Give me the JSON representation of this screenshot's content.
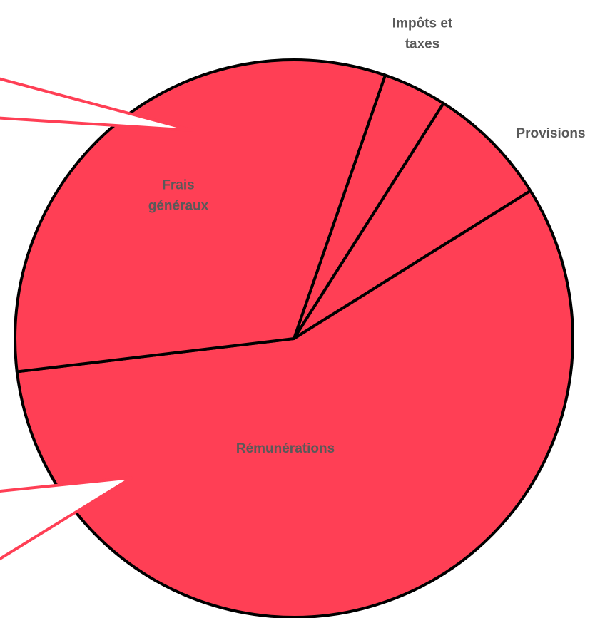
{
  "chart_data": {
    "type": "pie",
    "categories": [
      "Impôts et taxes",
      "Provisions",
      "Rémunérations",
      "Frais généraux"
    ],
    "values": [
      3.7,
      7.1,
      57,
      32.2
    ],
    "color": "#ff3f55",
    "startangle": 19.1
  }
}
